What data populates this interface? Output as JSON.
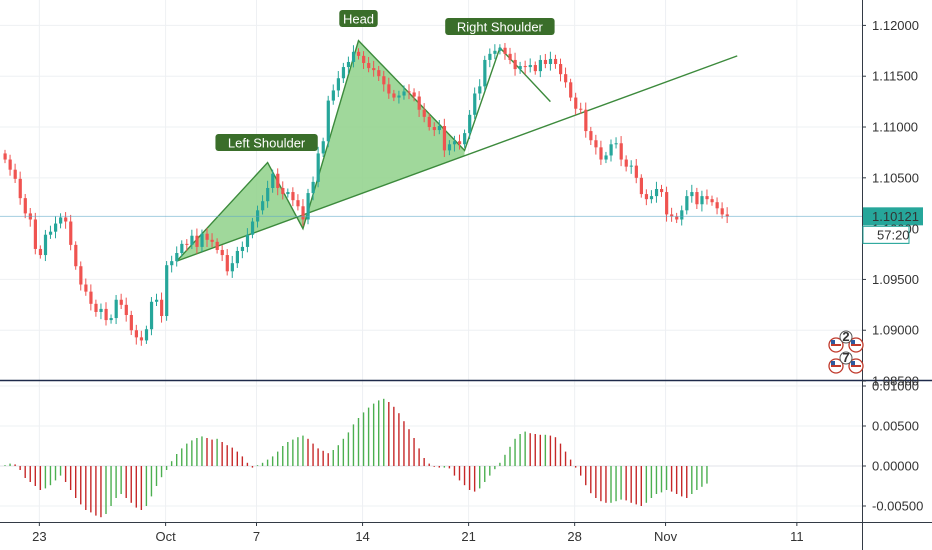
{
  "chart_data": [
    {
      "type": "candlestick",
      "title": "",
      "ylim": [
        1.0853,
        1.1225
      ],
      "y_ticks": [
        "1.12000",
        "1.11500",
        "1.11000",
        "1.10500",
        "1.09500",
        "1.09000",
        "1.08500"
      ],
      "x_ticks": [
        "23",
        "Oct",
        "7",
        "14",
        "21",
        "28",
        "Nov",
        "11"
      ],
      "last_price": "1.10121",
      "countdown": "57:20",
      "overlap_price": "1.10000",
      "grid": true,
      "colors": {
        "up": "#26a69a",
        "down": "#ef5350",
        "pattern_fill": "#8fd18a",
        "pattern_line": "#3c8a3c",
        "label_bg": "#3a6e2a",
        "price_line": "#5aa5c8"
      },
      "closes": [
        1.1068,
        1.1058,
        1.1049,
        1.103,
        1.1015,
        1.1009,
        1.098,
        1.0974,
        1.0994,
        1.0997,
        1.1005,
        1.1011,
        1.1007,
        1.0984,
        1.0963,
        1.0945,
        1.0938,
        1.0926,
        1.0918,
        1.0921,
        1.091,
        1.0912,
        1.093,
        1.0925,
        1.0915,
        1.09,
        1.0893,
        1.089,
        1.0901,
        1.0928,
        1.093,
        1.0914,
        1.0964,
        1.0968,
        1.0976,
        1.0985,
        1.0984,
        1.0993,
        1.0982,
        1.0995,
        1.0989,
        1.0987,
        1.0979,
        1.0974,
        1.0958,
        1.0966,
        1.0978,
        1.0982,
        1.0994,
        1.1007,
        1.1018,
        1.1027,
        1.104,
        1.1054,
        1.104,
        1.1034,
        1.1036,
        1.1028,
        1.1022,
        1.1009,
        1.1035,
        1.1046,
        1.1074,
        1.1086,
        1.1126,
        1.1136,
        1.1148,
        1.1159,
        1.1164,
        1.1174,
        1.117,
        1.1163,
        1.1158,
        1.1156,
        1.115,
        1.1142,
        1.1133,
        1.1129,
        1.1131,
        1.1135,
        1.1134,
        1.113,
        1.1117,
        1.111,
        1.11,
        1.1097,
        1.1101,
        1.1077,
        1.1083,
        1.1086,
        1.1083,
        1.1094,
        1.1112,
        1.1133,
        1.114,
        1.1166,
        1.1172,
        1.1175,
        1.1178,
        1.1172,
        1.1166,
        1.1157,
        1.116,
        1.1159,
        1.1161,
        1.1155,
        1.1166,
        1.1162,
        1.1167,
        1.1162,
        1.1152,
        1.1144,
        1.1129,
        1.1118,
        1.1117,
        1.1096,
        1.1087,
        1.108,
        1.1068,
        1.1072,
        1.1083,
        1.1084,
        1.1068,
        1.1061,
        1.1062,
        1.105,
        1.1034,
        1.1029,
        1.1032,
        1.1039,
        1.1036,
        1.1014,
        1.1012,
        1.1009,
        1.1018,
        1.1032,
        1.1036,
        1.1024,
        1.1032,
        1.1029,
        1.1026,
        1.102,
        1.1014,
        1.1012
      ],
      "pattern": {
        "labels": {
          "left": "Left Shoulder",
          "head": "Head",
          "right": "Right Shoulder"
        },
        "points": [
          {
            "i": 34,
            "p": 1.0968
          },
          {
            "i": 52,
            "p": 1.1065
          },
          {
            "i": 59,
            "p": 1.1
          },
          {
            "i": 70,
            "p": 1.1185
          },
          {
            "i": 91,
            "p": 1.1077
          },
          {
            "i": 98,
            "p": 1.1178
          },
          {
            "i": 108,
            "p": 1.1125
          }
        ],
        "neckline": {
          "i0": 34,
          "p0": 1.0968,
          "i1": 145,
          "p1": 1.117
        }
      }
    },
    {
      "type": "histogram",
      "title": "",
      "ylim": [
        -0.007,
        0.0105
      ],
      "y_ticks": [
        "0.01000",
        "0.00500",
        "0.00000",
        "-0.00500"
      ],
      "colors": {
        "rising": "#4caf50",
        "falling": "#c62828"
      },
      "values": [
        0.0001,
        0.0003,
        0.0002,
        -0.0005,
        -0.0015,
        -0.002,
        -0.0025,
        -0.003,
        -0.0028,
        -0.0024,
        -0.0018,
        -0.0012,
        -0.002,
        -0.003,
        -0.004,
        -0.0048,
        -0.0055,
        -0.0058,
        -0.0062,
        -0.0064,
        -0.006,
        -0.005,
        -0.004,
        -0.0035,
        -0.004,
        -0.0046,
        -0.0052,
        -0.0055,
        -0.005,
        -0.0038,
        -0.0025,
        -0.0014,
        -0.0005,
        0.0006,
        0.0015,
        0.0022,
        0.0028,
        0.0032,
        0.0035,
        0.0037,
        0.0035,
        0.0033,
        0.0034,
        0.003,
        0.0026,
        0.0023,
        0.0018,
        0.0012,
        0.0004,
        -0.0002,
        0.0001,
        0.0004,
        0.0008,
        0.0012,
        0.0018,
        0.0025,
        0.003,
        0.0033,
        0.0036,
        0.0038,
        0.0034,
        0.0028,
        0.0022,
        0.0019,
        0.0016,
        0.002,
        0.0026,
        0.0034,
        0.0042,
        0.0052,
        0.006,
        0.0067,
        0.0073,
        0.0078,
        0.0082,
        0.0084,
        0.008,
        0.0074,
        0.0066,
        0.0056,
        0.0046,
        0.0035,
        0.0022,
        0.001,
        0.0003,
        -0.0001,
        -0.0002,
        -0.0002,
        -0.0003,
        -0.0012,
        -0.0018,
        -0.0024,
        -0.003,
        -0.0032,
        -0.0028,
        -0.002,
        -0.0012,
        -0.0004,
        0.0004,
        0.0014,
        0.0024,
        0.0034,
        0.004,
        0.0043,
        0.0041,
        0.004,
        0.0039,
        0.0039,
        0.0038,
        0.0036,
        0.0028,
        0.0018,
        0.0008,
        -0.0002,
        -0.0012,
        -0.0024,
        -0.0034,
        -0.004,
        -0.0044,
        -0.0046,
        -0.0046,
        -0.0044,
        -0.0042,
        -0.0043,
        -0.0046,
        -0.0048,
        -0.005,
        -0.0046,
        -0.004,
        -0.0035,
        -0.0033,
        -0.003,
        -0.0032,
        -0.0035,
        -0.0038,
        -0.004,
        -0.0035,
        -0.003,
        -0.0026,
        -0.0022
      ]
    }
  ]
}
